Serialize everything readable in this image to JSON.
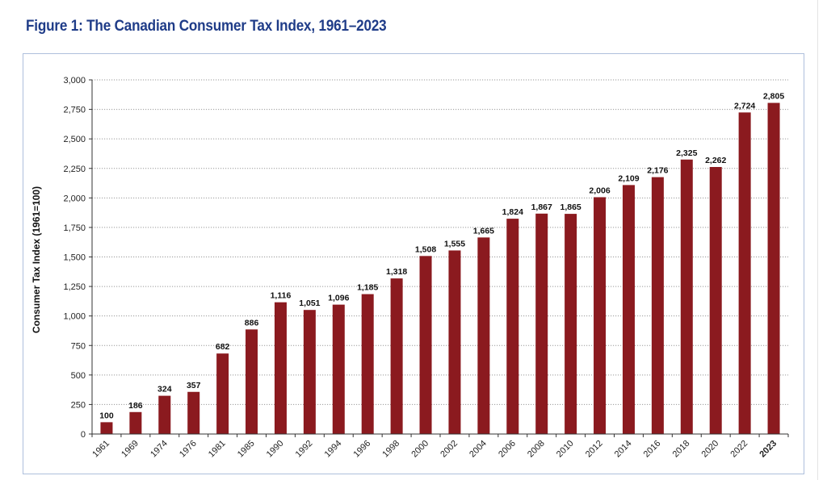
{
  "header": {
    "title": "Figure 1: The Canadian Consumer Tax Index, 1961–2023"
  },
  "chart_data": {
    "type": "bar",
    "title": "Figure 1: The Canadian Consumer Tax Index, 1961–2023",
    "xlabel": "",
    "ylabel": "Consumer Tax Index (1961=100)",
    "ylim": [
      0,
      3000
    ],
    "yticks": [
      "0",
      "250",
      "500",
      "750",
      "1,000",
      "1,250",
      "1,500",
      "1,750",
      "2,000",
      "2,250",
      "2,500",
      "2,750",
      "3,000"
    ],
    "ytick_values": [
      0,
      250,
      500,
      750,
      1000,
      1250,
      1500,
      1750,
      2000,
      2250,
      2500,
      2750,
      3000
    ],
    "grid": "horizontal dotted",
    "categories": [
      "1961",
      "1969",
      "1974",
      "1976",
      "1981",
      "1985",
      "1990",
      "1992",
      "1994",
      "1996",
      "1998",
      "2000",
      "2002",
      "2004",
      "2006",
      "2008",
      "2010",
      "2012",
      "2014",
      "2016",
      "2018",
      "2020",
      "2022",
      "2023"
    ],
    "values": [
      100,
      186,
      324,
      357,
      682,
      886,
      1116,
      1051,
      1096,
      1185,
      1318,
      1508,
      1555,
      1665,
      1824,
      1867,
      1865,
      2006,
      2109,
      2176,
      2325,
      2262,
      2724,
      2805
    ],
    "value_labels": [
      "100",
      "186",
      "324",
      "357",
      "682",
      "886",
      "1,116",
      "1,051",
      "1,096",
      "1,185",
      "1,318",
      "1,508",
      "1,555",
      "1,665",
      "1,824",
      "1,867",
      "1,865",
      "2,006",
      "2,109",
      "2,176",
      "2,325",
      "2,262",
      "2,724",
      "2,805"
    ],
    "bold_category": "2023",
    "bar_color": "#8b1a1f"
  }
}
